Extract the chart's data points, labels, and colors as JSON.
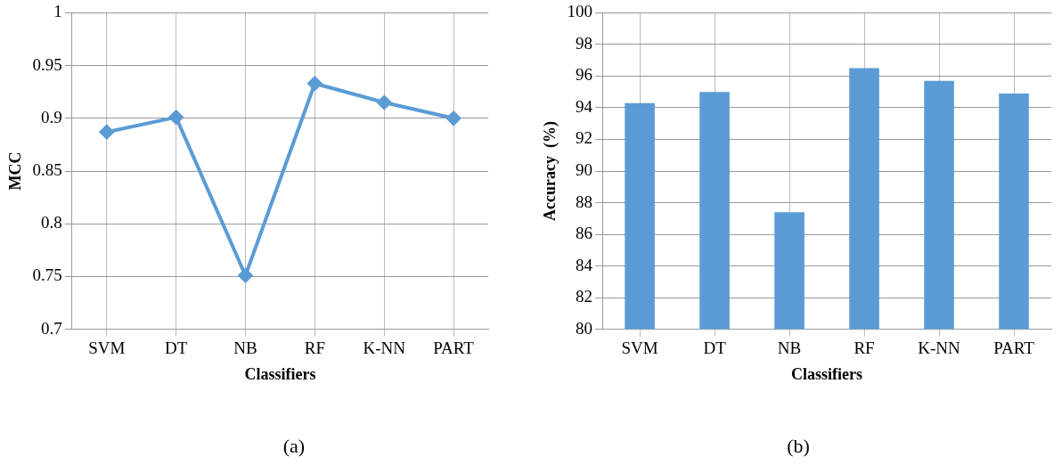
{
  "chart_data": [
    {
      "type": "line",
      "xlabel": "Classifiers",
      "ylabel": "MCC",
      "categories": [
        "SVM",
        "DT",
        "NB",
        "RF",
        "K-NN",
        "PART"
      ],
      "series": [
        {
          "color": "#5b9bd5",
          "values": [
            0.887,
            0.901,
            0.751,
            0.933,
            0.915,
            0.9
          ]
        }
      ],
      "ylim": [
        0.7,
        1
      ],
      "yticks": [
        0.7,
        0.75,
        0.8,
        0.85,
        0.9,
        0.95,
        1
      ],
      "grid": true,
      "legend": false,
      "marker": "diamond",
      "line_style": "solid",
      "annotations": [
        "(a)"
      ]
    },
    {
      "type": "bar",
      "xlabel": "Classifiers",
      "ylabel": "Accuracy  (%)",
      "categories": [
        "SVM",
        "DT",
        "NB",
        "RF",
        "K-NN",
        "PART"
      ],
      "series": [
        {
          "color": "#5b9bd5",
          "values": [
            94.3,
            95.0,
            87.4,
            96.5,
            95.7,
            94.9
          ]
        }
      ],
      "ylim": [
        80,
        100
      ],
      "yticks": [
        80,
        82,
        84,
        86,
        88,
        90,
        92,
        94,
        96,
        98,
        100
      ],
      "grid": true,
      "legend": false,
      "annotations": [
        "(b)"
      ]
    }
  ]
}
